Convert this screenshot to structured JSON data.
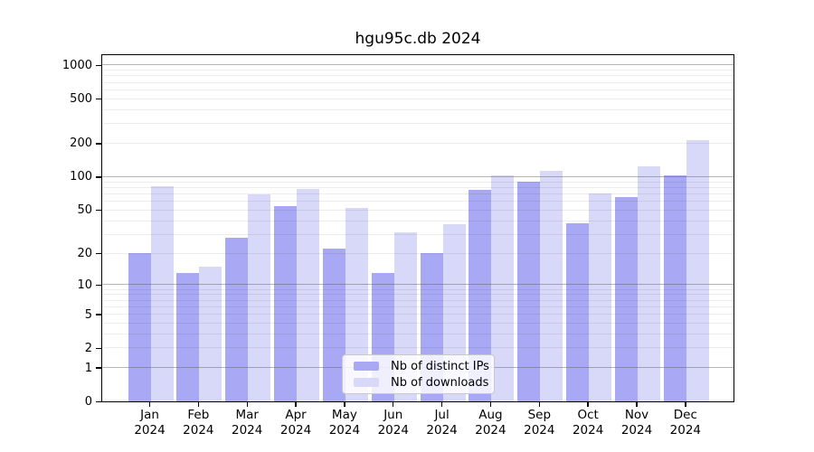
{
  "chart_data": {
    "type": "bar",
    "title": "hgu95c.db 2024",
    "categories": [
      "Jan",
      "Feb",
      "Mar",
      "Apr",
      "May",
      "Jun",
      "Jul",
      "Aug",
      "Sep",
      "Oct",
      "Nov",
      "Dec"
    ],
    "x_tick_year": "2024",
    "series": [
      {
        "name": "Nb of distinct IPs",
        "color": "#a8a8f5",
        "values": [
          20,
          13,
          28,
          54,
          22,
          13,
          20,
          76,
          90,
          38,
          66,
          103
        ]
      },
      {
        "name": "Nb of downloads",
        "color": "#d8d8f8",
        "values": [
          82,
          15,
          69,
          78,
          52,
          31,
          37,
          103,
          112,
          70,
          125,
          215
        ]
      }
    ],
    "xlabel": "",
    "ylabel": "",
    "y_scale": "log1p",
    "ylim": [
      0,
      1225
    ],
    "y_ticks": [
      0,
      1,
      2,
      5,
      10,
      20,
      50,
      100,
      200,
      500,
      1000
    ],
    "y_major_gridlines": [
      1,
      10,
      100,
      1000
    ],
    "y_minor_gridlines": [
      2,
      3,
      4,
      5,
      6,
      7,
      8,
      9,
      20,
      30,
      40,
      50,
      60,
      70,
      80,
      90,
      200,
      300,
      400,
      500,
      600,
      700,
      800,
      900
    ],
    "grid": "major-and-minor, drawn over bars",
    "legend_position": "bottom-center"
  },
  "colors": {
    "background": "#ffffff",
    "axis": "#000000",
    "major_grid": "#8c8c8c",
    "minor_grid": "#ececec",
    "legend_border": "#c8c8c8"
  }
}
